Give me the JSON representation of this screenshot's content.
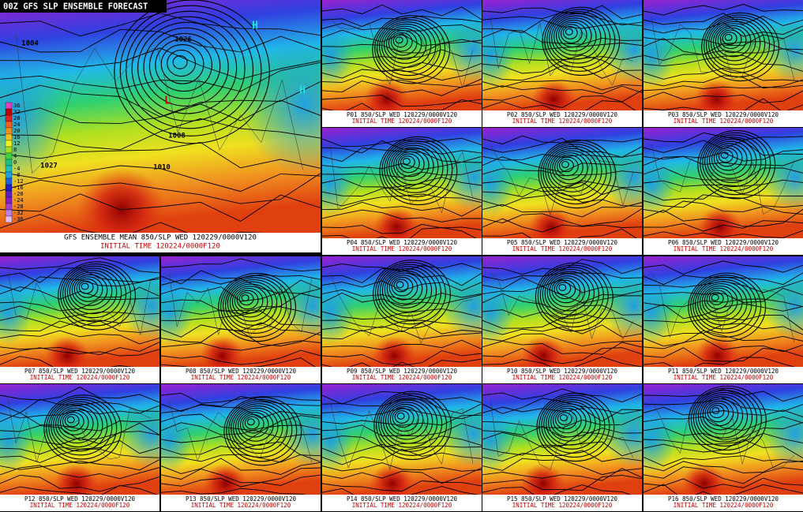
{
  "header": {
    "title": "00Z GFS SLP ENSEMBLE FORECAST"
  },
  "main_panel": {
    "caption": "GFS ENSEMBLE MEAN 850/SLP  WED 120229/0000V120",
    "initial": "INITIAL TIME 120224/0000F120",
    "labels": [
      "H",
      "H",
      "L",
      "1026",
      "1010",
      "1008",
      "1004",
      "1027"
    ]
  },
  "colorbar": {
    "values": [
      36,
      32,
      28,
      24,
      20,
      16,
      12,
      8,
      4,
      0,
      -4,
      -8,
      -12,
      -16,
      -20,
      -24,
      -28,
      -32,
      -36
    ],
    "colors": [
      "#e040c0",
      "#c00000",
      "#e02020",
      "#f06020",
      "#f09020",
      "#f0c020",
      "#f0f020",
      "#a0e020",
      "#40d040",
      "#20c080",
      "#20c0c0",
      "#20a0e0",
      "#2060e0",
      "#2020c0",
      "#6020c0",
      "#8020c0",
      "#a040d0",
      "#c080e0",
      "#e0c0f0"
    ]
  },
  "panels": [
    {
      "caption": "P01 850/SLP  WED 120229/0000V120",
      "initial": "INITIAL TIME 120224/0000F120"
    },
    {
      "caption": "P02 850/SLP  WED 120229/0000V120",
      "initial": "INITIAL TIME 120224/0000F120"
    },
    {
      "caption": "P03 850/SLP  WED 120229/0000V120",
      "initial": "INITIAL TIME 120224/0000F120"
    },
    {
      "caption": "P04 850/SLP  WED 120229/0000V120",
      "initial": "INITIAL TIME 120224/0000F120"
    },
    {
      "caption": "P05 850/SLP  WED 120229/0000V120",
      "initial": "INITIAL TIME 120224/0000F120"
    },
    {
      "caption": "P06 850/SLP  WED 120229/0000V120",
      "initial": "INITIAL TIME 120224/0000F120"
    },
    {
      "caption": "P07 850/SLP  WED 120229/0000V120",
      "initial": "INITIAL TIME 120224/0000F120"
    },
    {
      "caption": "P08 850/SLP  WED 120229/0000V120",
      "initial": "INITIAL TIME 120224/0000F120"
    },
    {
      "caption": "P09 850/SLP  WED 120229/0000V120",
      "initial": "INITIAL TIME 120224/0000F120"
    },
    {
      "caption": "P10 850/SLP  WED 120229/0000V120",
      "initial": "INITIAL TIME 120224/0000F120"
    },
    {
      "caption": "P11 850/SLP  WED 120229/0000V120",
      "initial": "INITIAL TIME 120224/0000F120"
    },
    {
      "caption": "P12 850/SLP  WED 120229/0000V120",
      "initial": "INITIAL TIME 120224/0000F120"
    },
    {
      "caption": "P13 850/SLP  WED 120229/0000V120",
      "initial": "INITIAL TIME 120224/0000F120"
    },
    {
      "caption": "P14 850/SLP  WED 120229/0000V120",
      "initial": "INITIAL TIME 120224/0000F120"
    },
    {
      "caption": "P15 850/SLP  WED 120229/0000V120",
      "initial": "INITIAL TIME 120224/0000F120"
    },
    {
      "caption": "P16 850/SLP  WED 120229/0000V120",
      "initial": "INITIAL TIME 120224/0000F120"
    }
  ]
}
